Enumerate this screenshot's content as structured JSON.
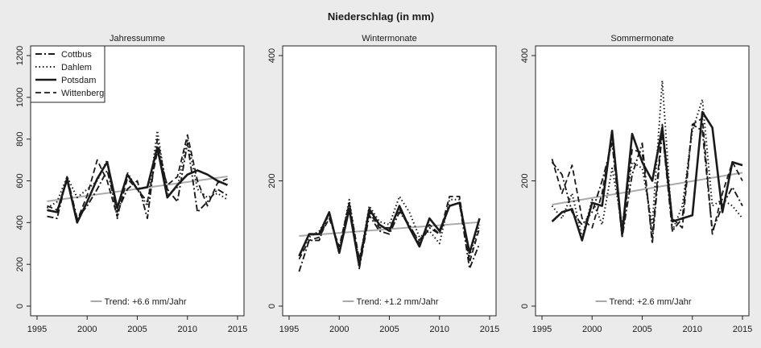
{
  "figure": {
    "title": "Niederschlag (in mm)"
  },
  "chart_data": [
    {
      "type": "line",
      "title": "Jahressumme",
      "xlim": [
        1995,
        2015
      ],
      "ylim": [
        0,
        1200
      ],
      "xticks": [
        1995,
        2000,
        2005,
        2010,
        2015
      ],
      "yticks": [
        0,
        200,
        400,
        600,
        800,
        1000,
        1200
      ],
      "x": [
        1996,
        1997,
        1998,
        1999,
        2000,
        2001,
        2002,
        2003,
        2004,
        2005,
        2006,
        2007,
        2008,
        2009,
        2010,
        2011,
        2012,
        2013,
        2014
      ],
      "legend": {
        "position": "top-left",
        "entries": [
          "Cottbus",
          "Dahlem",
          "Potsdam",
          "Wittenberg"
        ]
      },
      "series": [
        {
          "name": "Cottbus",
          "style": "dashdot",
          "values": [
            430,
            420,
            620,
            420,
            480,
            560,
            650,
            450,
            560,
            600,
            420,
            800,
            560,
            500,
            780,
            450,
            500,
            560,
            530
          ]
        },
        {
          "name": "Dahlem",
          "style": "dotted",
          "values": [
            470,
            500,
            620,
            520,
            560,
            600,
            700,
            420,
            640,
            560,
            480,
            840,
            530,
            570,
            800,
            560,
            520,
            540,
            510
          ]
        },
        {
          "name": "Potsdam",
          "style": "solid",
          "values": [
            460,
            450,
            610,
            400,
            500,
            610,
            690,
            470,
            630,
            560,
            570,
            760,
            520,
            580,
            630,
            650,
            630,
            600,
            580
          ]
        },
        {
          "name": "Wittenberg",
          "style": "dashed",
          "values": [
            480,
            460,
            600,
            410,
            530,
            700,
            600,
            430,
            610,
            560,
            500,
            740,
            580,
            620,
            820,
            600,
            480,
            590,
            610
          ]
        }
      ],
      "trend": {
        "label": "Trend: +6.6 mm/Jahr",
        "start": [
          1996,
          502
        ],
        "end": [
          2014,
          621
        ],
        "color": "#aaaaaa"
      }
    },
    {
      "type": "line",
      "title": "Wintermonate",
      "xlim": [
        1995,
        2015
      ],
      "ylim": [
        0,
        400
      ],
      "xticks": [
        1995,
        2000,
        2005,
        2010,
        2015
      ],
      "yticks": [
        0,
        200,
        400
      ],
      "x": [
        1996,
        1997,
        1998,
        1999,
        2000,
        2001,
        2002,
        2003,
        2004,
        2005,
        2006,
        2007,
        2008,
        2009,
        2010,
        2011,
        2012,
        2013,
        2014
      ],
      "series": [
        {
          "name": "Cottbus",
          "style": "dashdot",
          "values": [
            55,
            105,
            105,
            150,
            85,
            165,
            60,
            145,
            120,
            115,
            150,
            130,
            100,
            125,
            115,
            160,
            165,
            60,
            100
          ]
        },
        {
          "name": "Dahlem",
          "style": "dotted",
          "values": [
            80,
            110,
            120,
            145,
            90,
            170,
            70,
            160,
            135,
            130,
            175,
            150,
            110,
            120,
            100,
            170,
            170,
            80,
            130
          ]
        },
        {
          "name": "Potsdam",
          "style": "solid",
          "values": [
            80,
            115,
            115,
            150,
            85,
            155,
            65,
            155,
            130,
            120,
            160,
            125,
            95,
            140,
            120,
            160,
            165,
            85,
            140
          ]
        },
        {
          "name": "Wittenberg",
          "style": "dashed",
          "values": [
            75,
            105,
            110,
            140,
            95,
            165,
            75,
            150,
            125,
            125,
            155,
            125,
            105,
            130,
            115,
            175,
            175,
            70,
            125
          ]
        }
      ],
      "trend": {
        "label": "Trend: +1.2 mm/Jahr",
        "start": [
          1996,
          112
        ],
        "end": [
          2014,
          134
        ],
        "color": "#aaaaaa"
      }
    },
    {
      "type": "line",
      "title": "Sommermonate",
      "xlim": [
        1995,
        2015
      ],
      "ylim": [
        0,
        400
      ],
      "xticks": [
        1995,
        2000,
        2005,
        2010,
        2015
      ],
      "yticks": [
        0,
        200,
        400
      ],
      "x": [
        1996,
        1997,
        1998,
        1999,
        2000,
        2001,
        2002,
        2003,
        2004,
        2005,
        2006,
        2007,
        2008,
        2009,
        2010,
        2011,
        2012,
        2013,
        2014,
        2015
      ],
      "series": [
        {
          "name": "Cottbus",
          "style": "dashdot",
          "values": [
            230,
            210,
            150,
            130,
            150,
            200,
            260,
            110,
            210,
            260,
            100,
            280,
            120,
            140,
            290,
            280,
            120,
            160,
            190,
            160
          ]
        },
        {
          "name": "Dahlem",
          "style": "dotted",
          "values": [
            160,
            140,
            180,
            110,
            170,
            130,
            220,
            130,
            230,
            220,
            130,
            360,
            120,
            160,
            280,
            330,
            160,
            170,
            160,
            140
          ]
        },
        {
          "name": "Potsdam",
          "style": "solid",
          "values": [
            135,
            150,
            155,
            105,
            165,
            160,
            280,
            115,
            275,
            230,
            200,
            285,
            135,
            140,
            145,
            310,
            285,
            150,
            230,
            225
          ]
        },
        {
          "name": "Wittenberg",
          "style": "dashed",
          "values": [
            235,
            180,
            225,
            140,
            125,
            180,
            275,
            110,
            250,
            245,
            110,
            290,
            140,
            125,
            290,
            300,
            115,
            180,
            230,
            200
          ]
        }
      ],
      "trend": {
        "label": "Trend: +2.6 mm/Jahr",
        "start": [
          1996,
          162
        ],
        "end": [
          2015,
          213
        ],
        "color": "#aaaaaa"
      }
    }
  ]
}
